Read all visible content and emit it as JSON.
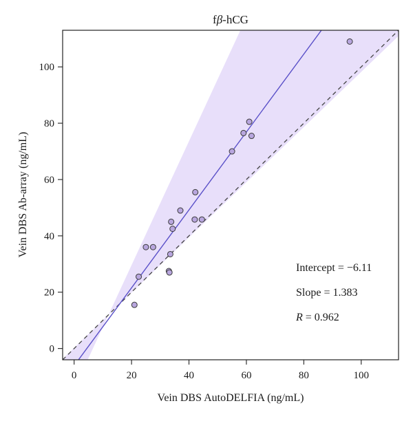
{
  "chart_data": {
    "type": "scatter",
    "title": "fβ-hCG",
    "title_prefix": "f",
    "title_greek": "β",
    "title_suffix": "-hCG",
    "xlabel": "Vein DBS AutoDELFIA (ng/mL)",
    "ylabel": "Vein DBS Ab-array (ng/mL)",
    "xlim": [
      -4,
      113
    ],
    "ylim": [
      -4,
      113
    ],
    "xticks": [
      0,
      20,
      40,
      60,
      80,
      100
    ],
    "yticks": [
      0,
      20,
      40,
      60,
      80,
      100
    ],
    "grid": false,
    "points": [
      {
        "x": 21.0,
        "y": 15.5
      },
      {
        "x": 22.5,
        "y": 25.5
      },
      {
        "x": 25.0,
        "y": 36.0
      },
      {
        "x": 27.5,
        "y": 36.0
      },
      {
        "x": 33.0,
        "y": 27.5
      },
      {
        "x": 33.2,
        "y": 27.0
      },
      {
        "x": 33.5,
        "y": 33.5
      },
      {
        "x": 33.8,
        "y": 45.0
      },
      {
        "x": 34.3,
        "y": 42.5
      },
      {
        "x": 37.0,
        "y": 49.0
      },
      {
        "x": 42.0,
        "y": 45.8
      },
      {
        "x": 42.2,
        "y": 55.5
      },
      {
        "x": 44.5,
        "y": 45.8
      },
      {
        "x": 55.0,
        "y": 70.0
      },
      {
        "x": 59.0,
        "y": 76.5
      },
      {
        "x": 61.0,
        "y": 80.5
      },
      {
        "x": 61.8,
        "y": 75.5
      },
      {
        "x": 96.0,
        "y": 109.0
      }
    ],
    "regression": {
      "intercept": -6.11,
      "slope": 1.383
    },
    "band": {
      "upper_slope": 2.2,
      "lower_slope": 0.98,
      "center_x": 12.0,
      "center_y": 12.0
    },
    "identity_line": true,
    "colors": {
      "band": "#e8dffa",
      "regression_line": "#5a50c8",
      "identity_line": "#444444",
      "point_fill": "#b8a6de",
      "point_stroke": "#3a3a3a"
    },
    "annotations": {
      "intercept": "Intercept = −6.11",
      "slope": "Slope = 1.383",
      "r_symbol": "R",
      "r_value": " = 0.962"
    }
  }
}
